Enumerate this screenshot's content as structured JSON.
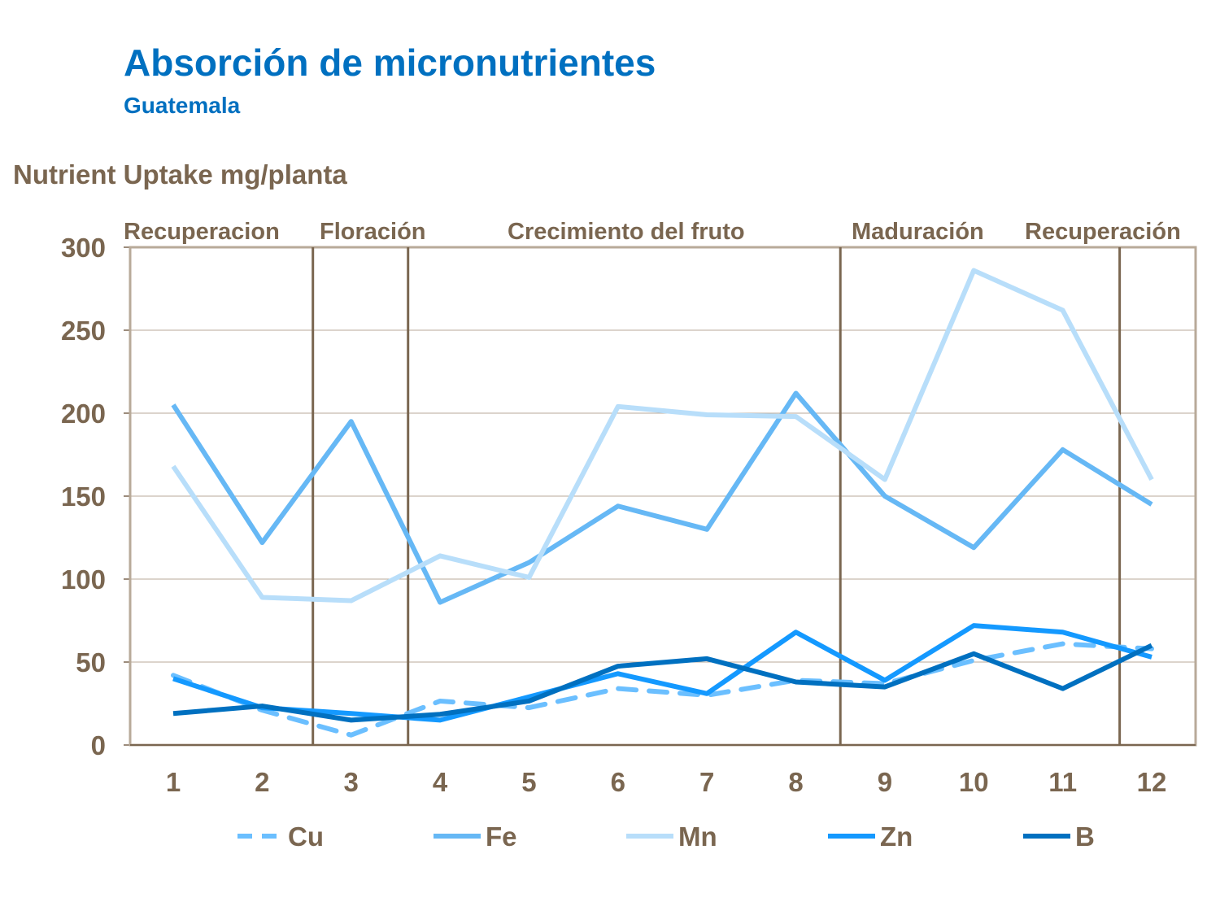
{
  "chart_data": {
    "type": "line",
    "title": "Absorción de micronutrientes",
    "subtitle": "Guatemala",
    "ylabel": "Nutrient Uptake mg/planta",
    "xlabel": "",
    "categories": [
      "1",
      "2",
      "3",
      "4",
      "5",
      "6",
      "7",
      "8",
      "9",
      "10",
      "11",
      "12"
    ],
    "ylim": [
      0,
      300
    ],
    "yticks": [
      0,
      50,
      100,
      150,
      200,
      250,
      300
    ],
    "grid": true,
    "legend_position": "bottom",
    "series": [
      {
        "name": "Cu",
        "color": "#6bbfff",
        "dashed": true,
        "values": [
          42,
          21,
          6,
          26.5,
          22.5,
          34,
          30,
          39,
          37,
          51,
          61,
          58
        ]
      },
      {
        "name": "Fe",
        "color": "#66b8f5",
        "dashed": false,
        "values": [
          205,
          122,
          195,
          86,
          110,
          144,
          130,
          212,
          150,
          119,
          178,
          145
        ]
      },
      {
        "name": "Mn",
        "color": "#b8defa",
        "dashed": false,
        "values": [
          168,
          89,
          87,
          114,
          101,
          204,
          199,
          198,
          160,
          286,
          262,
          160
        ]
      },
      {
        "name": "Zn",
        "color": "#1499ff",
        "dashed": false,
        "values": [
          40,
          22.5,
          19,
          15,
          29,
          43,
          31,
          68,
          39,
          72,
          68,
          53
        ]
      },
      {
        "name": "B",
        "color": "#0070c0",
        "dashed": false,
        "values": [
          19,
          23.5,
          15,
          18.5,
          26.5,
          47.5,
          52,
          38,
          35,
          55,
          34,
          60
        ]
      }
    ],
    "phase_dividers": [
      2.57,
      3.64,
      8.5,
      11.64
    ],
    "phases": [
      {
        "label": "Recuperacion",
        "from": 0.5,
        "to": 2.57
      },
      {
        "label": "Floración",
        "from": 2.57,
        "to": 3.64
      },
      {
        "label": "Crecimiento  del fruto",
        "from": 3.64,
        "to": 8.5
      },
      {
        "label": "Maduración",
        "from": 8.5,
        "to": 11.64
      },
      {
        "label": "Recuperación",
        "from": 11.64,
        "to": 12.5
      }
    ]
  }
}
